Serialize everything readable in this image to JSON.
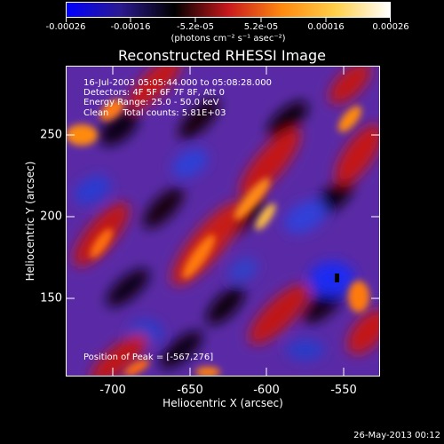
{
  "colorbar": {
    "tick_labels": [
      "-0.00026",
      "-0.00016",
      "-5.2e-05",
      "5.2e-05",
      "0.00016",
      "0.00026"
    ],
    "units": "(photons cm⁻² s⁻¹ asec⁻²)",
    "gradient_stops": [
      "#0000ff",
      "#2b1a8f",
      "#000000",
      "#c8181c",
      "#ff8a10",
      "#ffd04a",
      "#ffffff"
    ]
  },
  "title": "Reconstructed RHESSI Image",
  "info": {
    "time": "16-Jul-2003 05:05:44.000 to 05:08:28.000",
    "detectors": "Detectors: 4F 5F 6F 7F 8F, Att 0",
    "energy": "Energy Range: 25.0 - 50.0 keV",
    "clean": "Clean     Total counts: 5.81E+03",
    "peak": "Position of Peak = [-567,276]"
  },
  "axes": {
    "xlabel": "Heliocentric X (arcsec)",
    "ylabel": "Heliocentric Y (arcsec)",
    "xticks": [
      "-700",
      "-650",
      "-600",
      "-550"
    ],
    "yticks": [
      "250",
      "200",
      "150"
    ]
  },
  "stamp": "26-May-2013 00:12"
}
